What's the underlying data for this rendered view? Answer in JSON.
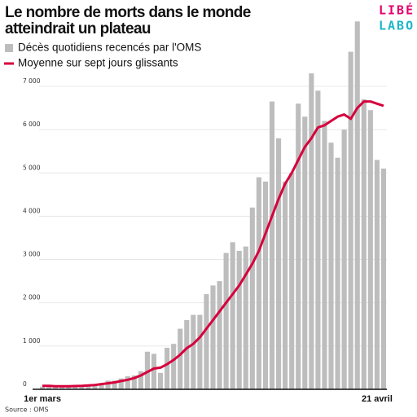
{
  "chart_data": {
    "type": "bar",
    "title_lines": [
      "Le nombre de morts dans le monde",
      "atteindrait un plateau"
    ],
    "logo_lines": [
      "LIBÉ",
      "LABO"
    ],
    "source": "Source : OMS",
    "categories": [
      "1er mars",
      null,
      null,
      null,
      null,
      null,
      null,
      null,
      null,
      null,
      null,
      null,
      null,
      null,
      null,
      null,
      null,
      null,
      null,
      null,
      null,
      null,
      null,
      null,
      null,
      null,
      null,
      null,
      null,
      null,
      null,
      null,
      null,
      null,
      null,
      null,
      null,
      null,
      null,
      null,
      null,
      null,
      null,
      null,
      null,
      null,
      null,
      null,
      null,
      null,
      null,
      "21 avril",
      null
    ],
    "series": [
      {
        "name": "Décès quotidiens recencés par l'OMS",
        "type": "bar",
        "color": "#bdbdbd",
        "values": [
          60,
          50,
          50,
          50,
          50,
          60,
          70,
          80,
          90,
          120,
          200,
          200,
          250,
          300,
          320,
          420,
          870,
          820,
          380,
          960,
          1050,
          1400,
          1600,
          1720,
          1720,
          2200,
          2400,
          2500,
          3150,
          3400,
          3200,
          3300,
          4200,
          4900,
          4800,
          6650,
          5800,
          4800,
          5000,
          6600,
          6300,
          7300,
          6900,
          6200,
          5700,
          5350,
          6000,
          7800,
          8500,
          6700,
          6450,
          5300,
          5100
        ]
      },
      {
        "name": "Moyenne sur sept jours glissants",
        "type": "line",
        "color": "#d6003c",
        "values": [
          80,
          80,
          70,
          70,
          70,
          75,
          80,
          90,
          100,
          120,
          140,
          160,
          190,
          220,
          260,
          320,
          400,
          480,
          500,
          580,
          680,
          800,
          950,
          1050,
          1200,
          1400,
          1600,
          1800,
          2000,
          2200,
          2400,
          2650,
          2900,
          3200,
          3600,
          4000,
          4400,
          4750,
          5000,
          5300,
          5600,
          5800,
          6050,
          6100,
          6200,
          6300,
          6350,
          6250,
          6500,
          6650,
          6650,
          6600,
          6550
        ]
      }
    ],
    "ylim": [
      0,
      8600
    ],
    "yticks": [
      0,
      {
        "value": 1000,
        "label": "1 000"
      },
      {
        "value": 2000,
        "label": "2 000"
      },
      {
        "value": 3000,
        "label": "3 000"
      },
      {
        "value": 4000,
        "label": "4 000"
      },
      {
        "value": 5000,
        "label": "5 000"
      },
      {
        "value": 6000,
        "label": "6 000"
      },
      {
        "value": 7000,
        "label": "7 000"
      }
    ],
    "grid": true
  }
}
